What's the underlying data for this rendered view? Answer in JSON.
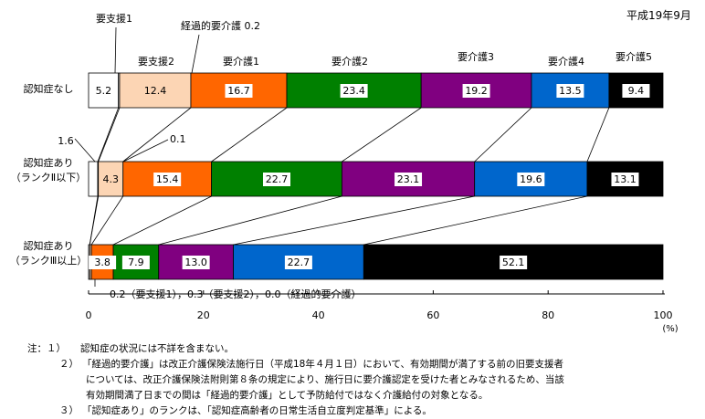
{
  "period": "平成19年9月",
  "chart_data": {
    "type": "bar",
    "orientation": "horizontal-stacked",
    "categories": [
      "認知症なし",
      "認知症あり（ランクⅡ以下）",
      "認知症あり（ランクⅢ以上）"
    ],
    "category_lines": [
      [
        "認知症なし"
      ],
      [
        "認知症あり",
        "（ランクⅡ以下）"
      ],
      [
        "認知症あり",
        "（ランクⅢ以上）"
      ]
    ],
    "series": [
      {
        "name": "要支援1",
        "color": "#ffffff",
        "values": [
          5.2,
          1.6,
          0.2
        ]
      },
      {
        "name": "経過的要介護",
        "color": "#ffffff",
        "values": [
          0.2,
          0.1,
          0.0
        ]
      },
      {
        "name": "要支援2",
        "color": "#fcd5b4",
        "values": [
          12.4,
          4.3,
          0.3
        ]
      },
      {
        "name": "要介護1",
        "color": "#ff6600",
        "values": [
          16.7,
          15.4,
          3.8
        ]
      },
      {
        "name": "要介護2",
        "color": "#008000",
        "values": [
          23.4,
          22.7,
          7.9
        ]
      },
      {
        "name": "要介護3",
        "color": "#800080",
        "values": [
          19.2,
          23.1,
          13.0
        ]
      },
      {
        "name": "要介護4",
        "color": "#0066cc",
        "values": [
          13.5,
          19.6,
          22.7
        ]
      },
      {
        "name": "要介護5",
        "color": "#000000",
        "values": [
          9.4,
          13.1,
          52.1
        ]
      }
    ],
    "top_labels": [
      "要支援1",
      "経過的要介護 0.2",
      "要支援2",
      "要介護1",
      "要介護2",
      "要介護3",
      "要介護4",
      "要介護5"
    ],
    "callouts": [
      "1.6",
      "0.1"
    ],
    "bottom_note": "0.2（要支援1），0.3（要支援2），0.0（経過的要介護）",
    "xlim": [
      0,
      100
    ],
    "xticks": [
      0,
      20,
      40,
      60,
      80,
      100
    ],
    "xunit": "(%)"
  },
  "notes": {
    "head": "注：１）",
    "n1": "認知症の状況には不詳を含まない。",
    "n2_num": "２）",
    "n2_line1": "「経過的要介護」は改正介護保険法施行日（平成18年４月１日）において、有効期間が満了する前の旧要支援者",
    "n2_line2": "については、改正介護保険法附則第８条の規定により、施行日に要介護認定を受けた者とみなされるため、当該",
    "n2_line3": "有効期間満了日までの間は「経過的要介護」として予防給付ではなく介護給付の対象となる。",
    "n3_num": "３）",
    "n3": "「認知症あり」のランクは、「認知症高齢者の日常生活自立度判定基準」による。"
  }
}
